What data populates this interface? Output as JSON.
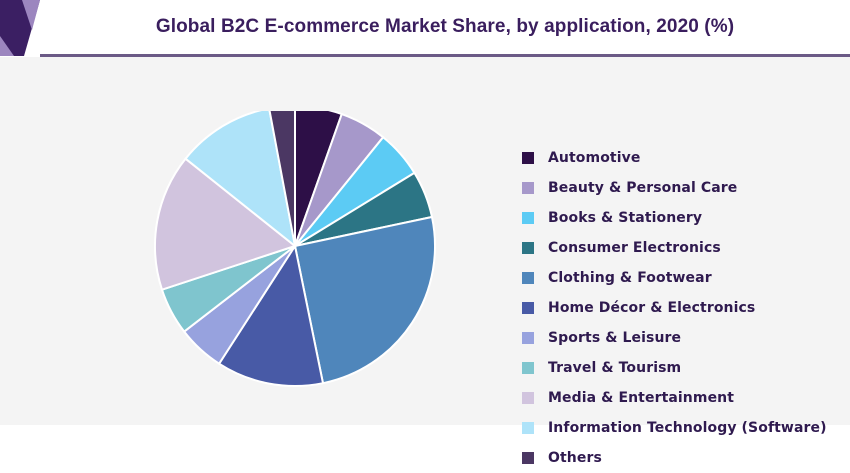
{
  "header": {
    "title": "Global B2C E-commerce Market Share, by application, 2020 (%)",
    "accent_color": "#6b5a86",
    "corner_colors": [
      "#3b1f63",
      "#9c86bf"
    ]
  },
  "chart_data": {
    "type": "pie",
    "title": "Global B2C E-commerce Market Share, by application, 2020 (%)",
    "legend_position": "right",
    "categories": [
      "Automotive",
      "Beauty & Personal Care",
      "Books & Stationery",
      "Consumer Electronics",
      "Clothing & Footwear",
      "Home Décor & Electronics",
      "Sports & Leisure",
      "Travel & Tourism",
      "Media & Entertainment",
      "Information Technology (Software)",
      "Others"
    ],
    "values": [
      5.5,
      5.5,
      5.5,
      5.5,
      25.5,
      12.5,
      5.5,
      5.5,
      16.0,
      11.5,
      3.0
    ],
    "colors": [
      "#2d0f47",
      "#a698ca",
      "#5ccbf4",
      "#2c7585",
      "#4f86bb",
      "#485aa6",
      "#97a2de",
      "#7fc5ce",
      "#d1c4de",
      "#aee3f9",
      "#4b3763"
    ]
  }
}
